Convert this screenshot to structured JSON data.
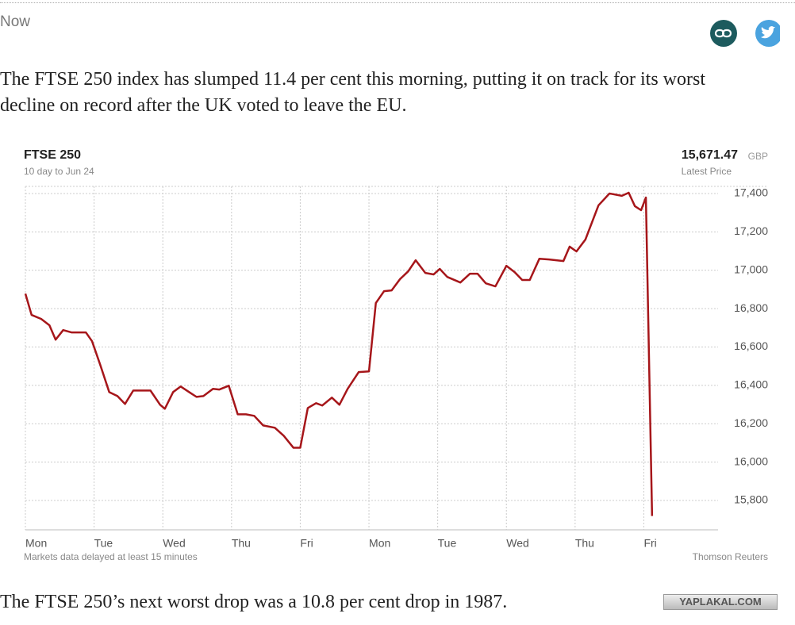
{
  "post": {
    "timestamp": "Now",
    "intro": "The FTSE 250 index has slumped 11.4 per cent this morning, putting it on track for its worst decline on record after the UK voted to leave the EU.",
    "outro": "The FTSE 250’s next worst drop was a 10.8 per cent drop in 1987.",
    "watermark": "YAPLAKAL.COM"
  },
  "chart_data": {
    "type": "line",
    "title": "FTSE 250",
    "subtitle": "10 day to Jun 24",
    "latest_price": "15,671.47",
    "currency": "GBP",
    "latest_price_label": "Latest Price",
    "note": "Markets data delayed at least 15 minutes",
    "source": "Thomson Reuters",
    "color": "#a6161a",
    "grid": true,
    "x": [
      0,
      0.09,
      0.23,
      0.35,
      0.44,
      0.55,
      0.67,
      0.88,
      0.97,
      1.09,
      1.22,
      1.34,
      1.45,
      1.57,
      1.82,
      1.96,
      2.03,
      2.15,
      2.26,
      2.4,
      2.49,
      2.59,
      2.73,
      2.82,
      2.96,
      3.09,
      3.21,
      3.33,
      3.46,
      3.63,
      3.76,
      3.9,
      4.0,
      4.11,
      4.23,
      4.32,
      4.46,
      4.57,
      4.69,
      4.85,
      5.0,
      5.1,
      5.22,
      5.33,
      5.45,
      5.57,
      5.68,
      5.82,
      5.94,
      6.03,
      6.14,
      6.33,
      6.47,
      6.58,
      6.7,
      6.84,
      7.0,
      7.12,
      7.23,
      7.34,
      7.48,
      7.62,
      7.83,
      7.92,
      8.02,
      8.15,
      8.34,
      8.5,
      8.68,
      8.78,
      8.87,
      8.96,
      9.03,
      9.12
    ],
    "values": [
      16878,
      16767,
      16746,
      16713,
      16638,
      16688,
      16676,
      16676,
      16630,
      16506,
      16365,
      16344,
      16303,
      16373,
      16373,
      16299,
      16278,
      16365,
      16394,
      16361,
      16340,
      16344,
      16382,
      16378,
      16398,
      16249,
      16249,
      16241,
      16191,
      16179,
      16137,
      16075,
      16075,
      16282,
      16307,
      16295,
      16336,
      16299,
      16382,
      16469,
      16473,
      16829,
      16891,
      16895,
      16953,
      16994,
      17052,
      16986,
      16978,
      17007,
      16965,
      16936,
      16982,
      16982,
      16932,
      16916,
      17023,
      16990,
      16949,
      16949,
      17060,
      17056,
      17048,
      17123,
      17098,
      17160,
      17338,
      17400,
      17388,
      17404,
      17334,
      17313,
      17379,
      15719
    ],
    "xlim": [
      0,
      10.08
    ],
    "xticks": [
      {
        "value": 0,
        "label": "Mon"
      },
      {
        "value": 1,
        "label": "Tue"
      },
      {
        "value": 2,
        "label": "Wed"
      },
      {
        "value": 3,
        "label": "Thu"
      },
      {
        "value": 4,
        "label": "Fri"
      },
      {
        "value": 5,
        "label": "Mon"
      },
      {
        "value": 6,
        "label": "Tue"
      },
      {
        "value": 7,
        "label": "Wed"
      },
      {
        "value": 8,
        "label": "Thu"
      },
      {
        "value": 9,
        "label": "Fri"
      }
    ],
    "ylim": [
      15647,
      17437
    ],
    "yticks": [
      {
        "value": 15800,
        "label": "15,800"
      },
      {
        "value": 16000,
        "label": "16,000"
      },
      {
        "value": 16200,
        "label": "16,200"
      },
      {
        "value": 16400,
        "label": "16,400"
      },
      {
        "value": 16600,
        "label": "16,600"
      },
      {
        "value": 16800,
        "label": "16,800"
      },
      {
        "value": 17000,
        "label": "17,000"
      },
      {
        "value": 17200,
        "label": "17,200"
      },
      {
        "value": 17400,
        "label": "17,400"
      }
    ]
  }
}
